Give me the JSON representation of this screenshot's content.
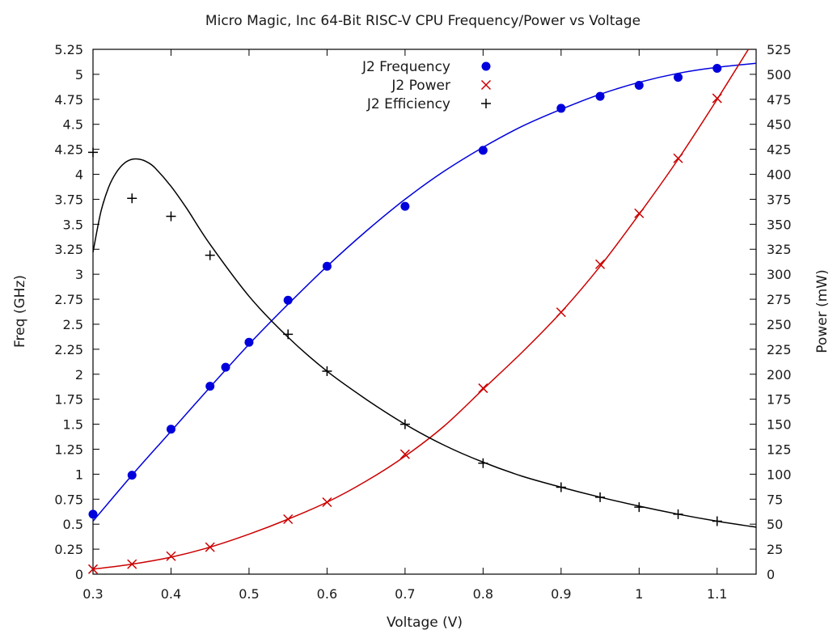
{
  "chart_data": {
    "type": "scatter",
    "title": "Micro Magic, Inc 64-Bit RISC-V CPU Frequency/Power vs Voltage",
    "xlabel": "Voltage (V)",
    "ylabel": "Freq (GHz)",
    "y2label": "Power (mW)",
    "xlim": [
      0.3,
      1.15
    ],
    "ylim": [
      0,
      5.25
    ],
    "y2lim": [
      0,
      525
    ],
    "x_ticks": [
      "0.3",
      "0.4",
      "0.5",
      "0.6",
      "0.7",
      "0.8",
      "0.9",
      "1",
      "1.1"
    ],
    "y_ticks": [
      "0",
      "0.25",
      "0.5",
      "0.75",
      "1",
      "1.25",
      "1.5",
      "1.75",
      "2",
      "2.25",
      "2.5",
      "2.75",
      "3",
      "3.25",
      "3.5",
      "3.75",
      "4",
      "4.25",
      "4.5",
      "4.75",
      "5",
      "5.25"
    ],
    "y2_ticks": [
      "0",
      "25",
      "50",
      "75",
      "100",
      "125",
      "150",
      "175",
      "200",
      "225",
      "250",
      "275",
      "300",
      "325",
      "350",
      "375",
      "400",
      "425",
      "450",
      "475",
      "500",
      "525"
    ],
    "grid": false,
    "legend_position": "top-center",
    "series": [
      {
        "name": "J2 Frequency",
        "axis": "left",
        "marker": "filled-circle",
        "color": "#0000dd",
        "points": [
          [
            0.3,
            0.6
          ],
          [
            0.35,
            0.99
          ],
          [
            0.4,
            1.45
          ],
          [
            0.45,
            1.88
          ],
          [
            0.47,
            2.07
          ],
          [
            0.5,
            2.32
          ],
          [
            0.55,
            2.74
          ],
          [
            0.6,
            3.08
          ],
          [
            0.7,
            3.68
          ],
          [
            0.8,
            4.24
          ],
          [
            0.9,
            4.66
          ],
          [
            0.95,
            4.78
          ],
          [
            1.0,
            4.89
          ],
          [
            1.05,
            4.97
          ],
          [
            1.1,
            5.06
          ]
        ],
        "fit": [
          [
            0.3,
            0.53
          ],
          [
            0.35,
            0.99
          ],
          [
            0.4,
            1.43
          ],
          [
            0.45,
            1.87
          ],
          [
            0.5,
            2.3
          ],
          [
            0.55,
            2.7
          ],
          [
            0.6,
            3.08
          ],
          [
            0.65,
            3.43
          ],
          [
            0.7,
            3.75
          ],
          [
            0.75,
            4.03
          ],
          [
            0.8,
            4.27
          ],
          [
            0.85,
            4.48
          ],
          [
            0.9,
            4.65
          ],
          [
            0.95,
            4.8
          ],
          [
            1.0,
            4.92
          ],
          [
            1.05,
            5.01
          ],
          [
            1.1,
            5.07
          ],
          [
            1.15,
            5.11
          ]
        ]
      },
      {
        "name": "J2 Power",
        "axis": "right",
        "marker": "x",
        "color": "#cc0000",
        "points": [
          [
            0.3,
            5
          ],
          [
            0.35,
            10
          ],
          [
            0.4,
            18
          ],
          [
            0.45,
            27
          ],
          [
            0.55,
            55
          ],
          [
            0.6,
            72
          ],
          [
            0.7,
            120
          ],
          [
            0.8,
            186
          ],
          [
            0.9,
            262
          ],
          [
            0.95,
            310
          ],
          [
            1.0,
            361
          ],
          [
            1.05,
            416
          ],
          [
            1.1,
            476
          ]
        ],
        "fit": [
          [
            0.3,
            5
          ],
          [
            0.35,
            10
          ],
          [
            0.4,
            17
          ],
          [
            0.45,
            27
          ],
          [
            0.5,
            40
          ],
          [
            0.55,
            55
          ],
          [
            0.6,
            72
          ],
          [
            0.65,
            93
          ],
          [
            0.7,
            118
          ],
          [
            0.75,
            148
          ],
          [
            0.8,
            185
          ],
          [
            0.85,
            222
          ],
          [
            0.9,
            262
          ],
          [
            0.95,
            308
          ],
          [
            1.0,
            360
          ],
          [
            1.05,
            415
          ],
          [
            1.1,
            475
          ],
          [
            1.14,
            525
          ]
        ]
      },
      {
        "name": "J2 Efficiency",
        "axis": "left",
        "marker": "plus",
        "color": "#000000",
        "points": [
          [
            0.3,
            4.22
          ],
          [
            0.35,
            3.76
          ],
          [
            0.4,
            3.58
          ],
          [
            0.45,
            3.19
          ],
          [
            0.55,
            2.4
          ],
          [
            0.6,
            2.03
          ],
          [
            0.7,
            1.5
          ],
          [
            0.8,
            1.11
          ],
          [
            0.9,
            0.87
          ],
          [
            0.95,
            0.77
          ],
          [
            1.0,
            0.67
          ],
          [
            1.05,
            0.6
          ],
          [
            1.1,
            0.53
          ]
        ],
        "fit": [
          [
            0.3,
            3.22
          ],
          [
            0.31,
            3.62
          ],
          [
            0.32,
            3.87
          ],
          [
            0.33,
            4.02
          ],
          [
            0.34,
            4.11
          ],
          [
            0.35,
            4.15
          ],
          [
            0.36,
            4.15
          ],
          [
            0.37,
            4.12
          ],
          [
            0.38,
            4.06
          ],
          [
            0.4,
            3.88
          ],
          [
            0.42,
            3.66
          ],
          [
            0.45,
            3.3
          ],
          [
            0.5,
            2.78
          ],
          [
            0.55,
            2.37
          ],
          [
            0.6,
            2.03
          ],
          [
            0.65,
            1.75
          ],
          [
            0.7,
            1.5
          ],
          [
            0.75,
            1.29
          ],
          [
            0.8,
            1.12
          ],
          [
            0.85,
            0.98
          ],
          [
            0.9,
            0.87
          ],
          [
            0.95,
            0.77
          ],
          [
            1.0,
            0.68
          ],
          [
            1.05,
            0.6
          ],
          [
            1.1,
            0.53
          ],
          [
            1.15,
            0.47
          ]
        ]
      }
    ]
  }
}
